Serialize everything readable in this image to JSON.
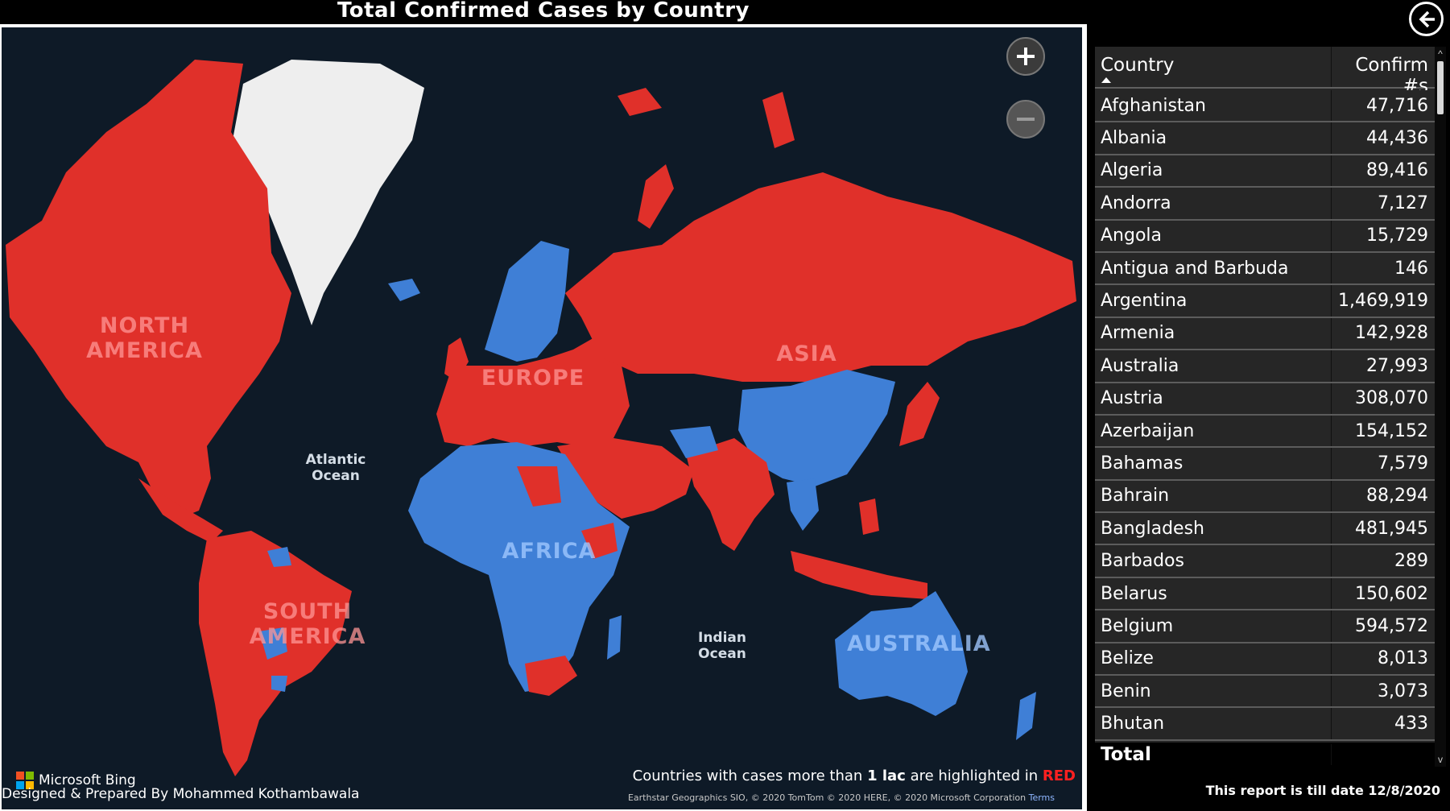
{
  "map": {
    "title": "Total Confirmed Cases by Country",
    "highlight_color": "#e0302a",
    "other_color": "#3f7fd6",
    "ocean_color": "#0e1a27",
    "continent_labels": {
      "north_america": "NORTH AMERICA",
      "europe": "EUROPE",
      "asia": "ASIA",
      "africa": "AFRICA",
      "south_america": "SOUTH AMERICA",
      "australia": "AUSTRALIA"
    },
    "ocean_labels": {
      "atlantic": "Atlantic Ocean",
      "indian": "Indian Ocean"
    },
    "zoom_in_icon": "plus-icon",
    "zoom_out_icon": "minus-icon",
    "bing_logo": "Microsoft Bing",
    "designed_by": "Designed & Prepared By Mohammed Kothambawala",
    "legend_note": {
      "prefix": "Countries with cases more than ",
      "bold": "1 lac",
      "middle": " are highlighted in ",
      "red_word": "RED"
    },
    "attribution": {
      "text": "Earthstar Geographics SIO, © 2020 TomTom © 2020 HERE, © 2020 Microsoft Corporation ",
      "link": "Terms"
    }
  },
  "table": {
    "back_icon": "back-arrow-icon",
    "columns": [
      "Country",
      "Confirm #s"
    ],
    "sort_icon": "sort-ascending-icon",
    "rows": [
      {
        "country": "Afghanistan",
        "confirm": "47,716"
      },
      {
        "country": "Albania",
        "confirm": "44,436"
      },
      {
        "country": "Algeria",
        "confirm": "89,416"
      },
      {
        "country": "Andorra",
        "confirm": "7,127"
      },
      {
        "country": "Angola",
        "confirm": "15,729"
      },
      {
        "country": "Antigua and Barbuda",
        "confirm": "146"
      },
      {
        "country": "Argentina",
        "confirm": "1,469,919"
      },
      {
        "country": "Armenia",
        "confirm": "142,928"
      },
      {
        "country": "Australia",
        "confirm": "27,993"
      },
      {
        "country": "Austria",
        "confirm": "308,070"
      },
      {
        "country": "Azerbaijan",
        "confirm": "154,152"
      },
      {
        "country": "Bahamas",
        "confirm": "7,579"
      },
      {
        "country": "Bahrain",
        "confirm": "88,294"
      },
      {
        "country": "Bangladesh",
        "confirm": "481,945"
      },
      {
        "country": "Barbados",
        "confirm": "289"
      },
      {
        "country": "Belarus",
        "confirm": "150,602"
      },
      {
        "country": "Belgium",
        "confirm": "594,572"
      },
      {
        "country": "Belize",
        "confirm": "8,013"
      },
      {
        "country": "Benin",
        "confirm": "3,073"
      },
      {
        "country": "Bhutan",
        "confirm": "433"
      }
    ],
    "total_label": "Total",
    "report_date": "This report is till date 12/8/2020"
  }
}
